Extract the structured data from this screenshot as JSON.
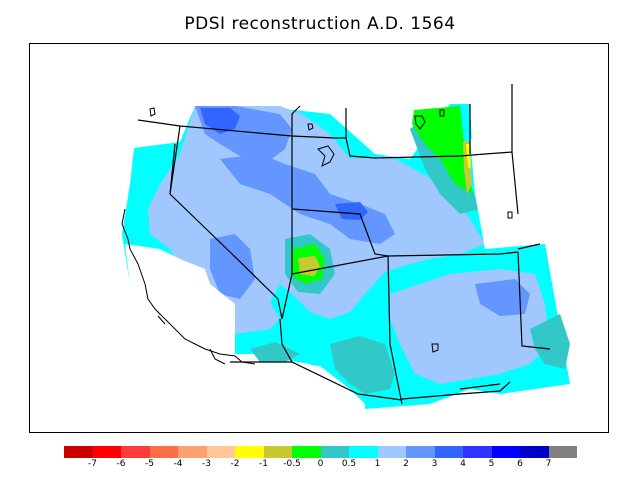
{
  "title": "PDSI reconstruction A.D. 1564",
  "legend": {
    "colors": [
      "#c80000",
      "#ff0000",
      "#ff3c3c",
      "#ff6e46",
      "#ffa070",
      "#ffc896",
      "#ffff00",
      "#c8c832",
      "#00ff00",
      "#32c8c8",
      "#00ffff",
      "#a0c8ff",
      "#6496ff",
      "#3264ff",
      "#3232ff",
      "#0000ff",
      "#0000c8",
      "#808080"
    ],
    "labels": [
      "-7",
      "-6",
      "-5",
      "-4",
      "-3",
      "-2",
      "-1",
      "-0.5",
      "0",
      "0.5",
      "1",
      "2",
      "3",
      "4",
      "5",
      "6",
      "7"
    ]
  },
  "map": {
    "variable": "PDSI",
    "region": "Southwestern United States",
    "colors": {
      "cyan": "#00ffff",
      "teal": "#32c8c8",
      "light_blue": "#a0c8ff",
      "mid_blue": "#6496ff",
      "blue": "#3264ff",
      "green": "#00ff00",
      "olive": "#c8c832",
      "yellow": "#ffff00"
    }
  }
}
